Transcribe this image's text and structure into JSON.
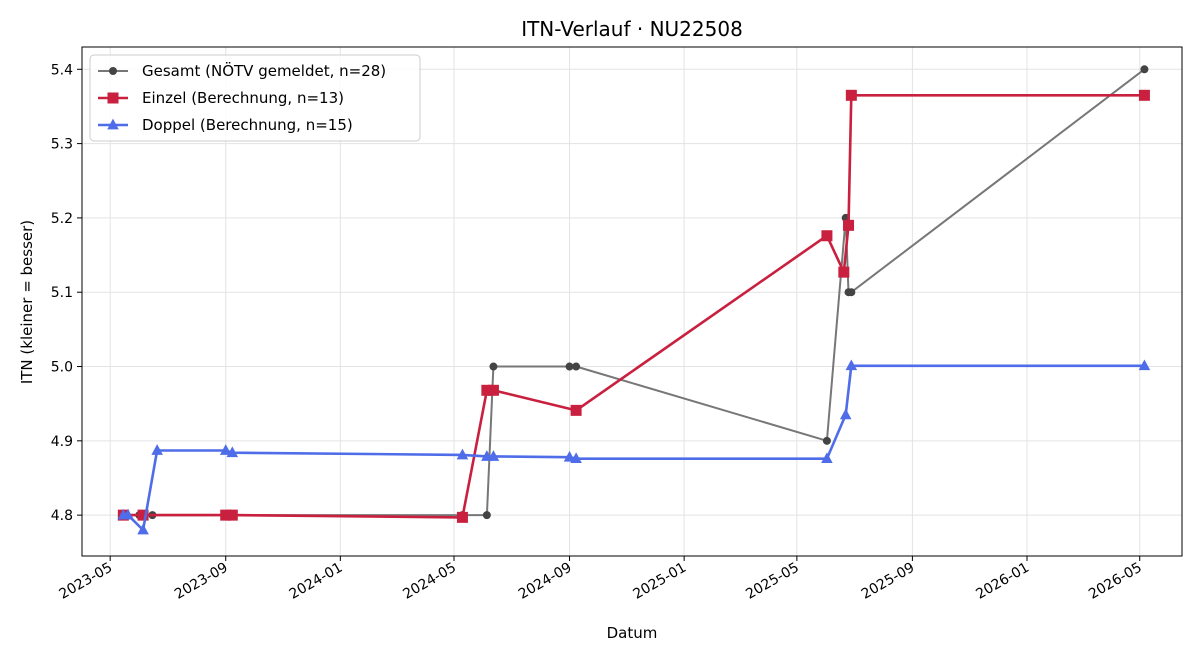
{
  "chart_data": {
    "type": "line",
    "title": "ITN-Verlauf · NU22508",
    "xlabel": "Datum",
    "ylabel": "ITN  (kleiner = besser)",
    "x_is_date": true,
    "xlim": [
      "2023-04-01",
      "2026-06-15"
    ],
    "ylim": [
      4.745,
      5.43
    ],
    "x_ticks": [
      "2023-05-01",
      "2023-09-01",
      "2024-01-01",
      "2024-05-01",
      "2024-09-01",
      "2025-01-01",
      "2025-05-01",
      "2025-09-01",
      "2026-01-01",
      "2026-05-01"
    ],
    "x_tick_labels": [
      "2023-05",
      "2023-09",
      "2024-01",
      "2024-05",
      "2024-09",
      "2025-01",
      "2025-05",
      "2025-09",
      "2026-01",
      "2026-05"
    ],
    "y_ticks": [
      4.8,
      4.9,
      5.0,
      5.1,
      5.2,
      5.3,
      5.4
    ],
    "y_tick_labels": [
      "4.8",
      "4.9",
      "5.0",
      "5.1",
      "5.2",
      "5.3",
      "5.4"
    ],
    "grid": true,
    "legend_position": "top-left",
    "series": [
      {
        "name": "Gesamt (NÖTV gemeldet, n=28)",
        "color": "#777777",
        "marker": "circle",
        "marker_color": "#444444",
        "points": [
          {
            "x": "2023-05-15",
            "y": 4.8
          },
          {
            "x": "2023-05-18",
            "y": 4.8
          },
          {
            "x": "2023-06-01",
            "y": 4.8
          },
          {
            "x": "2023-06-15",
            "y": 4.8
          },
          {
            "x": "2023-09-01",
            "y": 4.8
          },
          {
            "x": "2023-09-08",
            "y": 4.8
          },
          {
            "x": "2024-05-10",
            "y": 4.8
          },
          {
            "x": "2024-06-05",
            "y": 4.8
          },
          {
            "x": "2024-06-12",
            "y": 5.0
          },
          {
            "x": "2024-09-01",
            "y": 5.0
          },
          {
            "x": "2024-09-08",
            "y": 5.0
          },
          {
            "x": "2025-06-02",
            "y": 4.9
          },
          {
            "x": "2025-06-22",
            "y": 5.2
          },
          {
            "x": "2025-06-25",
            "y": 5.1
          },
          {
            "x": "2025-06-28",
            "y": 5.1
          },
          {
            "x": "2026-05-06",
            "y": 5.4
          }
        ]
      },
      {
        "name": "Einzel (Berechnung, n=13)",
        "color": "#c8203e",
        "marker": "square",
        "marker_color": "#c8203e",
        "points": [
          {
            "x": "2023-05-15",
            "y": 4.8
          },
          {
            "x": "2023-06-05",
            "y": 4.8
          },
          {
            "x": "2023-09-01",
            "y": 4.8
          },
          {
            "x": "2023-09-08",
            "y": 4.8
          },
          {
            "x": "2024-05-10",
            "y": 4.797
          },
          {
            "x": "2024-06-05",
            "y": 4.968
          },
          {
            "x": "2024-06-12",
            "y": 4.968
          },
          {
            "x": "2024-09-08",
            "y": 4.941
          },
          {
            "x": "2025-06-02",
            "y": 5.176
          },
          {
            "x": "2025-06-20",
            "y": 5.127
          },
          {
            "x": "2025-06-25",
            "y": 5.19
          },
          {
            "x": "2025-06-28",
            "y": 5.365
          },
          {
            "x": "2026-05-06",
            "y": 5.365
          }
        ]
      },
      {
        "name": "Doppel (Berechnung, n=15)",
        "color": "#4f6de8",
        "marker": "triangle",
        "marker_color": "#4f6de8",
        "points": [
          {
            "x": "2023-05-15",
            "y": 4.8
          },
          {
            "x": "2023-05-20",
            "y": 4.8
          },
          {
            "x": "2023-06-05",
            "y": 4.78
          },
          {
            "x": "2023-06-20",
            "y": 4.887
          },
          {
            "x": "2023-09-01",
            "y": 4.887
          },
          {
            "x": "2023-09-08",
            "y": 4.884
          },
          {
            "x": "2024-05-10",
            "y": 4.881
          },
          {
            "x": "2024-06-05",
            "y": 4.879
          },
          {
            "x": "2024-06-12",
            "y": 4.879
          },
          {
            "x": "2024-09-01",
            "y": 4.878
          },
          {
            "x": "2024-09-08",
            "y": 4.876
          },
          {
            "x": "2025-06-02",
            "y": 4.876
          },
          {
            "x": "2025-06-22",
            "y": 4.935
          },
          {
            "x": "2025-06-28",
            "y": 5.001
          },
          {
            "x": "2026-05-06",
            "y": 5.001
          }
        ]
      }
    ]
  }
}
